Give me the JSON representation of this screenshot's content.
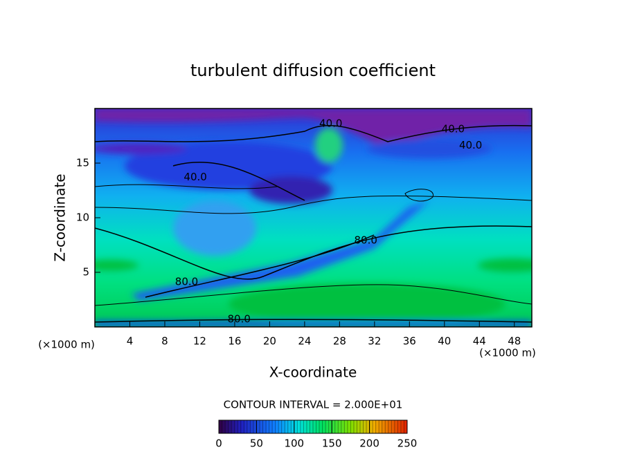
{
  "chart_data": {
    "type": "contour",
    "title": "turbulent diffusion coefficient",
    "xlabel": "X-coordinate",
    "ylabel": "Z-coordinate",
    "x_unit_label": "(×1000 m)",
    "xlim": [
      0,
      50
    ],
    "ylim": [
      0,
      20
    ],
    "xticks": [
      4,
      8,
      12,
      16,
      20,
      24,
      28,
      32,
      36,
      40,
      44,
      48
    ],
    "yticks": [
      5,
      10,
      15
    ],
    "contour_labels": [
      {
        "value": 40,
        "label": "40.0"
      },
      {
        "value": 40,
        "label": "40.0"
      },
      {
        "value": 40,
        "label": "40.0"
      },
      {
        "value": 40,
        "label": "40.0"
      },
      {
        "value": 80,
        "label": "80.0"
      },
      {
        "value": 80,
        "label": "80.0"
      },
      {
        "value": 80,
        "label": "80.0"
      }
    ],
    "contour_interval_text": "CONTOUR INTERVAL = 2.000E+01",
    "colorbar": {
      "clim": [
        0,
        250
      ],
      "ticks": [
        0,
        50,
        100,
        150,
        200,
        250
      ]
    }
  }
}
